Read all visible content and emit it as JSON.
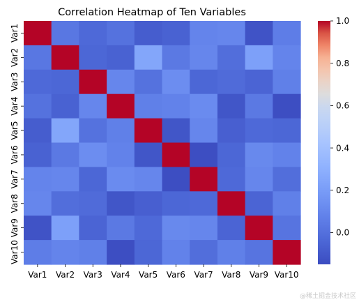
{
  "chart_data": {
    "type": "heatmap",
    "title": "Correlation Heatmap of Ten Variables",
    "labels": [
      "Var1",
      "Var2",
      "Var3",
      "Var4",
      "Var5",
      "Var6",
      "Var7",
      "Var8",
      "Var9",
      "Var10"
    ],
    "matrix": [
      [
        1.0,
        0.03,
        -0.03,
        0.01,
        -0.08,
        -0.06,
        0.09,
        0.1,
        -0.12,
        0.06
      ],
      [
        0.03,
        1.0,
        -0.04,
        -0.06,
        0.25,
        0.04,
        0.1,
        -0.01,
        0.22,
        0.09
      ],
      [
        -0.03,
        -0.04,
        1.0,
        0.1,
        0.01,
        0.13,
        -0.04,
        -0.02,
        -0.05,
        0.07
      ],
      [
        0.01,
        -0.06,
        0.1,
        1.0,
        0.07,
        0.08,
        0.12,
        -0.11,
        0.04,
        -0.14
      ],
      [
        -0.08,
        0.25,
        0.01,
        0.07,
        1.0,
        -0.11,
        0.1,
        -0.07,
        -0.03,
        -0.04
      ],
      [
        -0.06,
        0.04,
        0.13,
        0.08,
        -0.11,
        1.0,
        -0.14,
        -0.04,
        0.11,
        0.08
      ],
      [
        0.09,
        0.1,
        -0.04,
        0.12,
        0.1,
        -0.14,
        1.0,
        -0.03,
        0.1,
        -0.01
      ],
      [
        0.1,
        -0.01,
        -0.02,
        -0.11,
        -0.07,
        -0.04,
        -0.03,
        1.0,
        -0.05,
        0.07
      ],
      [
        -0.12,
        0.22,
        -0.05,
        0.04,
        -0.03,
        0.11,
        0.1,
        -0.05,
        1.0,
        0.02
      ],
      [
        0.06,
        0.09,
        0.07,
        -0.14,
        -0.04,
        0.08,
        -0.01,
        0.07,
        0.02,
        1.0
      ]
    ],
    "vmin": -0.15,
    "vmax": 1.0,
    "colormap": "coolwarm",
    "colorbar_ticks": [
      "1.0",
      "0.8",
      "0.6",
      "0.4",
      "0.2",
      "0.0"
    ],
    "colorbar_tick_values": [
      1.0,
      0.8,
      0.6,
      0.4,
      0.2,
      0.0
    ],
    "colorbar_min_color": "#3b4cc0",
    "colorbar_max_color": "#b40426"
  },
  "watermark": "@稀土掘金技术社区"
}
